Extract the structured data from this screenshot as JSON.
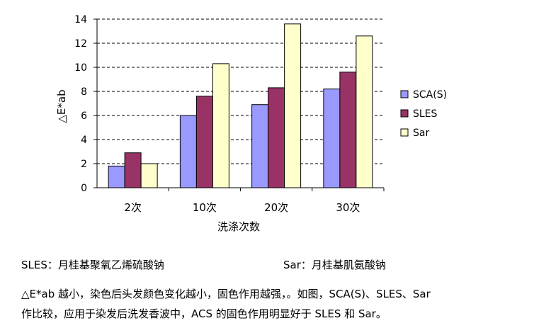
{
  "chart_data": {
    "type": "bar",
    "categories": [
      "2次",
      "10次",
      "20次",
      "30次"
    ],
    "series": [
      {
        "name": "SCA(S)",
        "color": "#9999ff",
        "values": [
          1.8,
          6.0,
          6.9,
          8.2
        ]
      },
      {
        "name": "SLES",
        "color": "#993366",
        "values": [
          2.9,
          7.6,
          8.3,
          9.6
        ]
      },
      {
        "name": "Sar",
        "color": "#ffffcc",
        "values": [
          2.0,
          10.3,
          13.6,
          12.6
        ]
      }
    ],
    "xlabel": "洗涤次数",
    "ylabel": "△E*ab",
    "ylim": [
      0,
      14
    ],
    "yticks": [
      0,
      2,
      4,
      6,
      8,
      10,
      12,
      14
    ],
    "grid": "horizontal dashed",
    "legend_position": "right"
  },
  "definitions": {
    "sles": "SLES：月桂基聚氧乙烯硫酸钠",
    "sar": "Sar：月桂基肌氨酸钠"
  },
  "note": {
    "line1": "△E*ab 越小，染色后头发颜色变化越小，固色作用越强，。如图，SCA(S)、SLES、Sar",
    "line2": "作比较，应用于染发后洗发香波中，ACS 的固色作用明显好于 SLES 和 Sar。"
  }
}
